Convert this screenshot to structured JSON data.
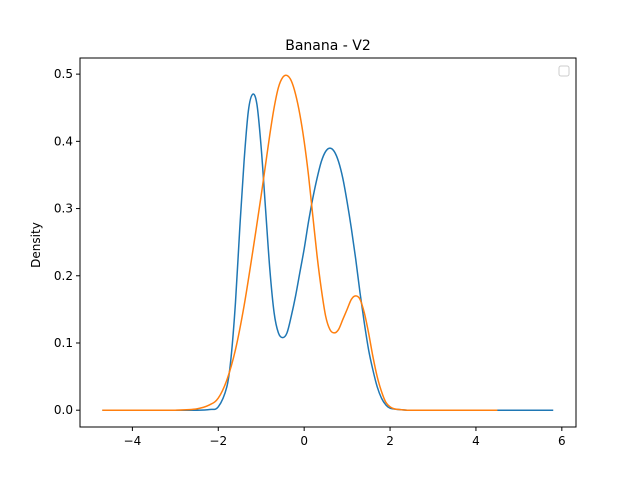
{
  "chart_data": {
    "type": "line",
    "title": "Banana - V2",
    "xlabel": "",
    "ylabel": "Density",
    "xlim": [
      -5.22,
      6.33
    ],
    "ylim": [
      -0.025,
      0.524
    ],
    "x_ticks": [
      -4,
      -2,
      0,
      2,
      4,
      6
    ],
    "x_tick_labels": [
      "−4",
      "−2",
      "0",
      "2",
      "4",
      "6"
    ],
    "y_ticks": [
      0.0,
      0.1,
      0.2,
      0.3,
      0.4,
      0.5
    ],
    "y_tick_labels": [
      "0.0",
      "0.1",
      "0.2",
      "0.3",
      "0.4",
      "0.5"
    ],
    "grid": false,
    "legend": {
      "placement": "top-right",
      "entries": []
    },
    "series": [
      {
        "color": "#1f77b4",
        "x": [
          -4.7,
          -3.5,
          -2.5,
          -2.2,
          -2.0,
          -1.8,
          -1.7,
          -1.6,
          -1.5,
          -1.4,
          -1.3,
          -1.2,
          -1.1,
          -1.0,
          -0.9,
          -0.8,
          -0.7,
          -0.6,
          -0.5,
          -0.4,
          -0.3,
          -0.2,
          -0.1,
          0.0,
          0.1,
          0.2,
          0.3,
          0.4,
          0.5,
          0.6,
          0.7,
          0.8,
          0.9,
          1.0,
          1.1,
          1.2,
          1.3,
          1.4,
          1.5,
          1.6,
          1.7,
          1.8,
          1.9,
          2.0,
          2.2,
          2.4,
          2.6,
          2.8,
          3.0,
          3.5,
          4.0,
          5.0,
          5.8
        ],
        "values": [
          0.0,
          0.0,
          0.0,
          0.001,
          0.005,
          0.035,
          0.08,
          0.16,
          0.27,
          0.37,
          0.445,
          0.47,
          0.455,
          0.39,
          0.3,
          0.21,
          0.145,
          0.115,
          0.108,
          0.115,
          0.14,
          0.17,
          0.205,
          0.24,
          0.28,
          0.315,
          0.345,
          0.37,
          0.385,
          0.39,
          0.385,
          0.37,
          0.345,
          0.31,
          0.27,
          0.225,
          0.175,
          0.13,
          0.09,
          0.06,
          0.035,
          0.018,
          0.008,
          0.003,
          0.001,
          0.0,
          0.0,
          0.0,
          0.0,
          0.0,
          0.0,
          0.0,
          0.0
        ]
      },
      {
        "color": "#ff7f0e",
        "x": [
          -4.7,
          -3.5,
          -3.0,
          -2.5,
          -2.2,
          -2.0,
          -1.8,
          -1.6,
          -1.4,
          -1.2,
          -1.0,
          -0.9,
          -0.8,
          -0.7,
          -0.6,
          -0.5,
          -0.4,
          -0.3,
          -0.2,
          -0.1,
          0.0,
          0.1,
          0.2,
          0.3,
          0.4,
          0.5,
          0.6,
          0.7,
          0.8,
          0.9,
          1.0,
          1.1,
          1.2,
          1.3,
          1.4,
          1.5,
          1.6,
          1.7,
          1.8,
          1.9,
          2.0,
          2.1,
          2.2,
          2.4,
          2.6,
          2.8,
          3.0,
          3.5,
          4.0,
          4.5
        ],
        "values": [
          0.0,
          0.0,
          0.0,
          0.002,
          0.008,
          0.018,
          0.045,
          0.09,
          0.155,
          0.235,
          0.32,
          0.365,
          0.41,
          0.45,
          0.48,
          0.495,
          0.498,
          0.49,
          0.47,
          0.44,
          0.4,
          0.35,
          0.29,
          0.23,
          0.18,
          0.14,
          0.12,
          0.115,
          0.12,
          0.135,
          0.15,
          0.165,
          0.17,
          0.165,
          0.145,
          0.115,
          0.08,
          0.05,
          0.028,
          0.012,
          0.005,
          0.002,
          0.001,
          0.0,
          0.0,
          0.0,
          0.0,
          0.0,
          0.0,
          0.0
        ]
      }
    ]
  }
}
